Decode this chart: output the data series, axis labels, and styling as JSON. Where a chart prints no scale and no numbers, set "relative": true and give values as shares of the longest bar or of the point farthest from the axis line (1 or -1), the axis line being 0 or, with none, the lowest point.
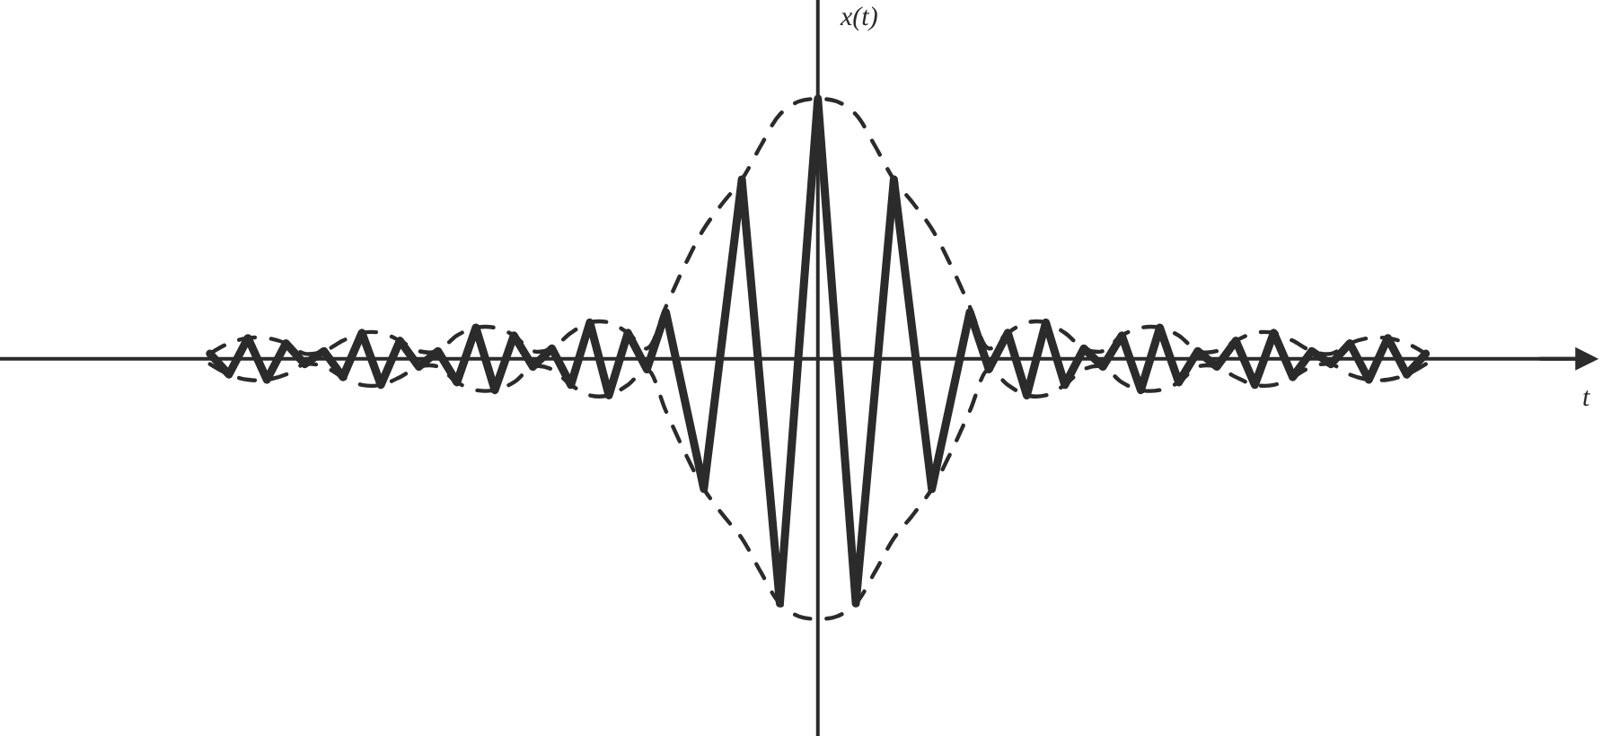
{
  "chart_data": {
    "type": "line",
    "relative": true,
    "annotations": [
      "t"
    ],
    "ylabel": "x(t)",
    "marker": "none",
    "categories": [
      null,
      null,
      null,
      null,
      null,
      null,
      null,
      null,
      null,
      null,
      null,
      null,
      null,
      null,
      null,
      null,
      null,
      null,
      null,
      null,
      null,
      null,
      null,
      null,
      null,
      null,
      null,
      null,
      null,
      null,
      null,
      null,
      null,
      null,
      null,
      null,
      null,
      null,
      null,
      null,
      null,
      null,
      null,
      null,
      null,
      null,
      null,
      null,
      null,
      null,
      null,
      null,
      null,
      null,
      null,
      null,
      null,
      null,
      null,
      null,
      null,
      null,
      null,
      null,
      null
    ],
    "series": [
      {
        "color": "#2b2b2b",
        "line_style": "solid",
        "values": [
          0.02,
          -0.06,
          0.08,
          -0.08,
          0.06,
          -0.02,
          0.03,
          -0.07,
          0.1,
          -0.1,
          0.07,
          -0.03,
          0.03,
          -0.09,
          0.12,
          -0.12,
          0.09,
          -0.03,
          0.04,
          -0.1,
          0.14,
          -0.14,
          0.1,
          -0.04,
          0.18,
          -0.16,
          -0.5,
          0.095,
          0.69,
          -0.125,
          -0.94,
          0.03,
          1,
          0.03,
          -0.94,
          -0.125,
          0.69,
          0.095,
          -0.5,
          -0.16,
          0.18,
          -0.04,
          0.1,
          -0.14,
          0.14,
          -0.1,
          0.04,
          -0.03,
          0.09,
          -0.12,
          0.12,
          -0.09,
          0.03,
          -0.03,
          0.07,
          -0.1,
          0.1,
          -0.07,
          0.03,
          -0.02,
          0.06,
          -0.08,
          0.08,
          -0.06,
          0.02
        ]
      },
      {
        "color": "#2b2b2b",
        "line_style": "dashed",
        "values": [
          0.02,
          0.06,
          0.08,
          0.08,
          0.06,
          0.02,
          0.03,
          0.07,
          0.1,
          0.1,
          0.07,
          0.03,
          0.03,
          0.09,
          0.12,
          0.12,
          0.09,
          0.03,
          0.04,
          0.1,
          0.14,
          0.14,
          0.1,
          0.04,
          0.2,
          0.36,
          0.5,
          0.6,
          0.69,
          0.82,
          0.94,
          0.99,
          1,
          0.99,
          0.94,
          0.82,
          0.69,
          0.6,
          0.5,
          0.36,
          0.2,
          0.04,
          0.1,
          0.14,
          0.14,
          0.1,
          0.04,
          0.03,
          0.09,
          0.12,
          0.12,
          0.09,
          0.03,
          0.03,
          0.07,
          0.1,
          0.1,
          0.07,
          0.03,
          0.02,
          0.06,
          0.08,
          0.08,
          0.06,
          0.02
        ]
      },
      {
        "color": "#2b2b2b",
        "line_style": "dashed",
        "values": [
          -0.02,
          -0.06,
          -0.08,
          -0.08,
          -0.06,
          -0.02,
          -0.03,
          -0.07,
          -0.1,
          -0.1,
          -0.07,
          -0.03,
          -0.03,
          -0.09,
          -0.12,
          -0.12,
          -0.09,
          -0.03,
          -0.04,
          -0.1,
          -0.14,
          -0.14,
          -0.1,
          -0.04,
          -0.2,
          -0.36,
          -0.5,
          -0.6,
          -0.69,
          -0.82,
          -0.94,
          -0.99,
          -1,
          -0.99,
          -0.94,
          -0.82,
          -0.69,
          -0.6,
          -0.5,
          -0.36,
          -0.2,
          -0.04,
          -0.1,
          -0.14,
          -0.14,
          -0.1,
          -0.04,
          -0.03,
          -0.09,
          -0.12,
          -0.12,
          -0.09,
          -0.03,
          -0.03,
          -0.07,
          -0.1,
          -0.1,
          -0.07,
          -0.03,
          -0.02,
          -0.06,
          -0.08,
          -0.08,
          -0.06,
          -0.02
        ]
      }
    ]
  }
}
